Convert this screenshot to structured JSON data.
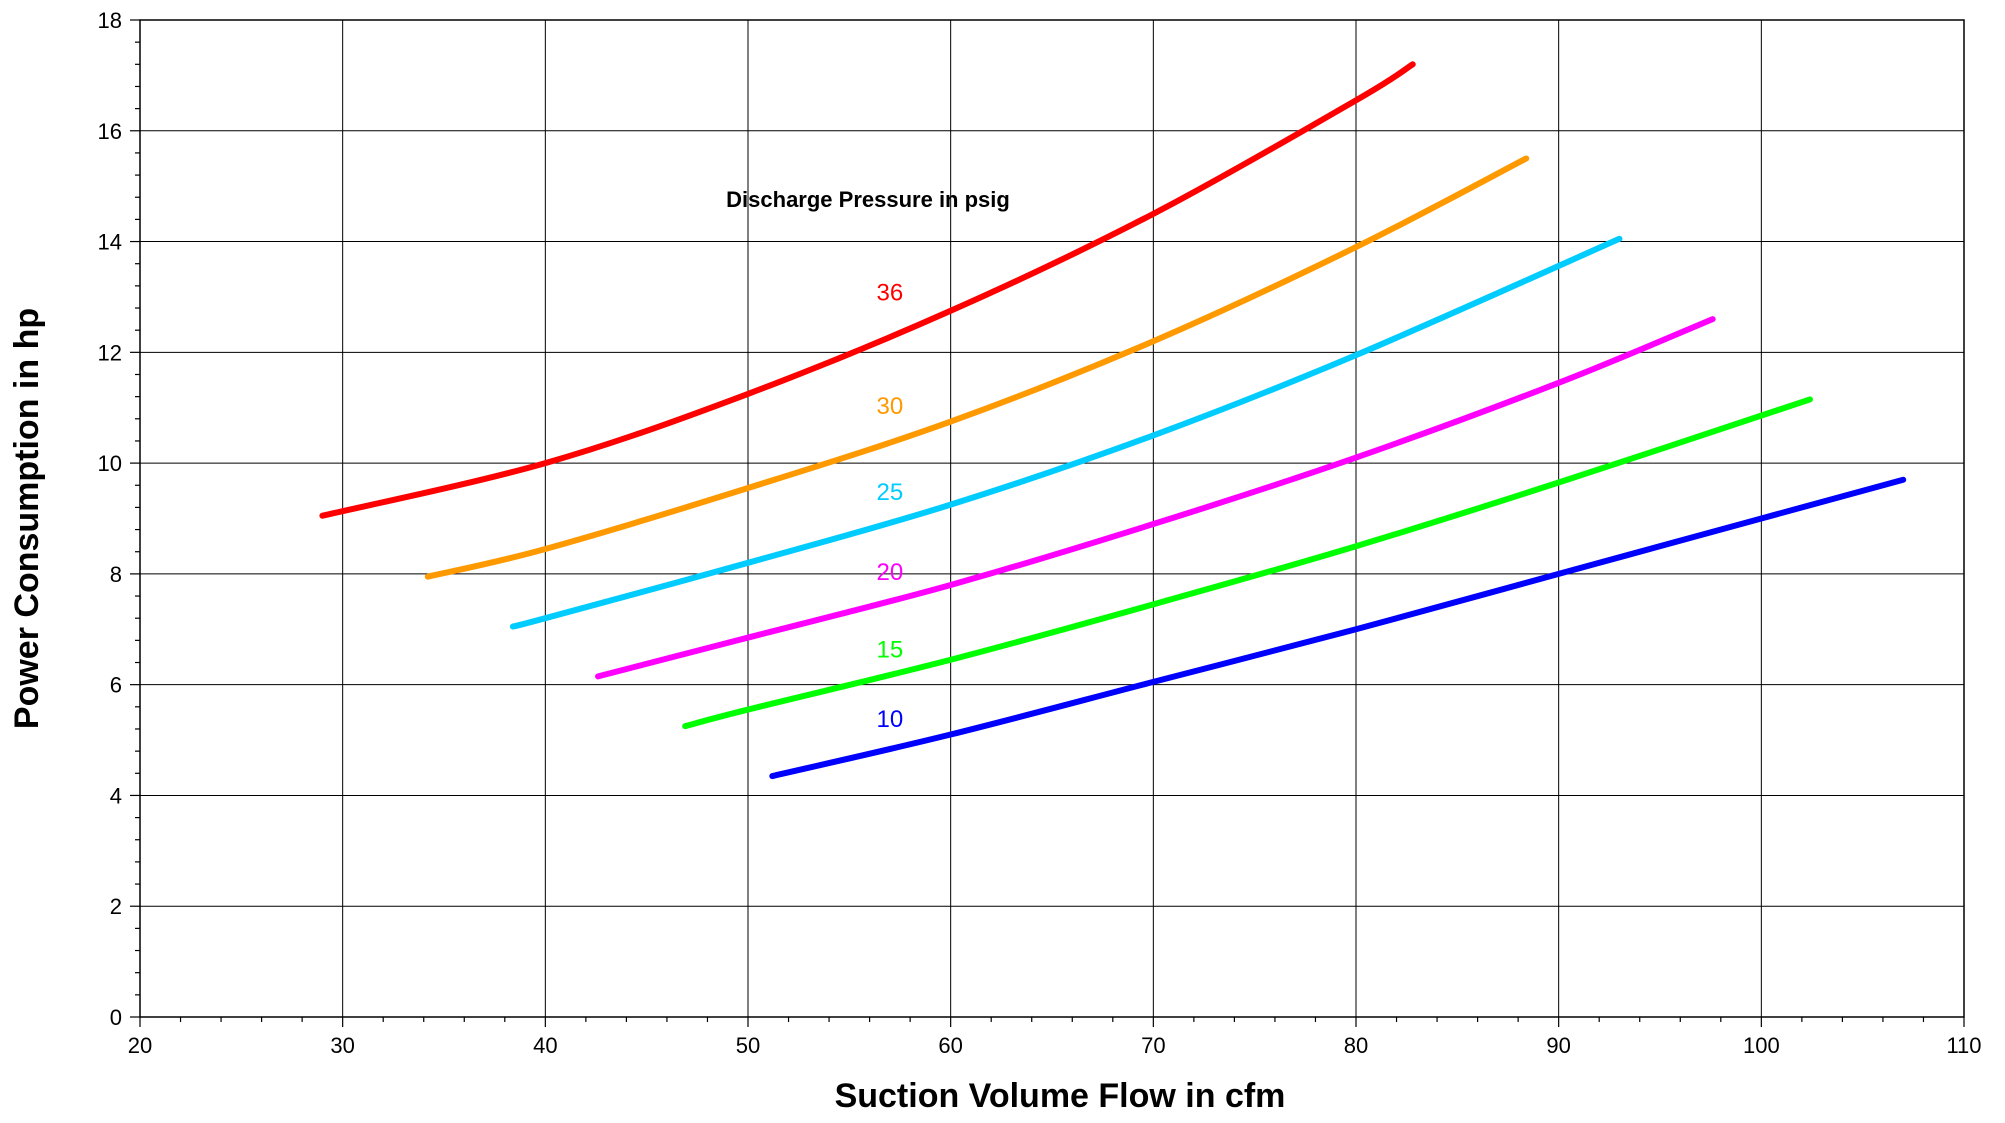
{
  "chart_data": {
    "type": "line",
    "title": "",
    "xlabel": "Suction Volume Flow in cfm",
    "ylabel": "Power Consumption in hp",
    "xlim": [
      20,
      110
    ],
    "ylim": [
      0,
      18
    ],
    "x_ticks": [
      20,
      30,
      40,
      50,
      60,
      70,
      80,
      90,
      100,
      110
    ],
    "y_ticks": [
      0,
      2,
      4,
      6,
      8,
      10,
      12,
      14,
      16,
      18
    ],
    "grid": true,
    "legend_title": "Discharge Pressure in psig",
    "series": [
      {
        "name": "36",
        "color": "#ff0000",
        "x": [
          29,
          40,
          50,
          60,
          70,
          80,
          82.8
        ],
        "y": [
          9.05,
          10.0,
          11.25,
          12.75,
          14.5,
          16.55,
          17.2
        ],
        "label_y": 13.1
      },
      {
        "name": "30",
        "color": "#ff9900",
        "x": [
          34.2,
          40,
          50,
          60,
          70,
          80,
          88.4
        ],
        "y": [
          7.95,
          8.45,
          9.55,
          10.75,
          12.2,
          13.9,
          15.5
        ],
        "label_y": 11.05
      },
      {
        "name": "25",
        "color": "#00ccff",
        "x": [
          38.4,
          40,
          50,
          60,
          70,
          80,
          93
        ],
        "y": [
          7.05,
          7.2,
          8.2,
          9.25,
          10.5,
          11.95,
          14.05
        ],
        "label_y": 9.5
      },
      {
        "name": "20",
        "color": "#ff00ff",
        "x": [
          42.6,
          50,
          60,
          70,
          80,
          90,
          97.6
        ],
        "y": [
          6.15,
          6.85,
          7.8,
          8.9,
          10.1,
          11.45,
          12.6
        ],
        "label_y": 8.05
      },
      {
        "name": "15",
        "color": "#00ff00",
        "x": [
          46.9,
          50,
          60,
          70,
          80,
          90,
          102.4
        ],
        "y": [
          5.25,
          5.55,
          6.45,
          7.45,
          8.5,
          9.65,
          11.15
        ],
        "label_y": 6.65
      },
      {
        "name": "10",
        "color": "#0000ff",
        "x": [
          51.2,
          60,
          70,
          80,
          90,
          100,
          107
        ],
        "y": [
          4.35,
          5.1,
          6.05,
          7.0,
          8.0,
          9.0,
          9.7
        ],
        "label_y": 5.4
      }
    ]
  }
}
